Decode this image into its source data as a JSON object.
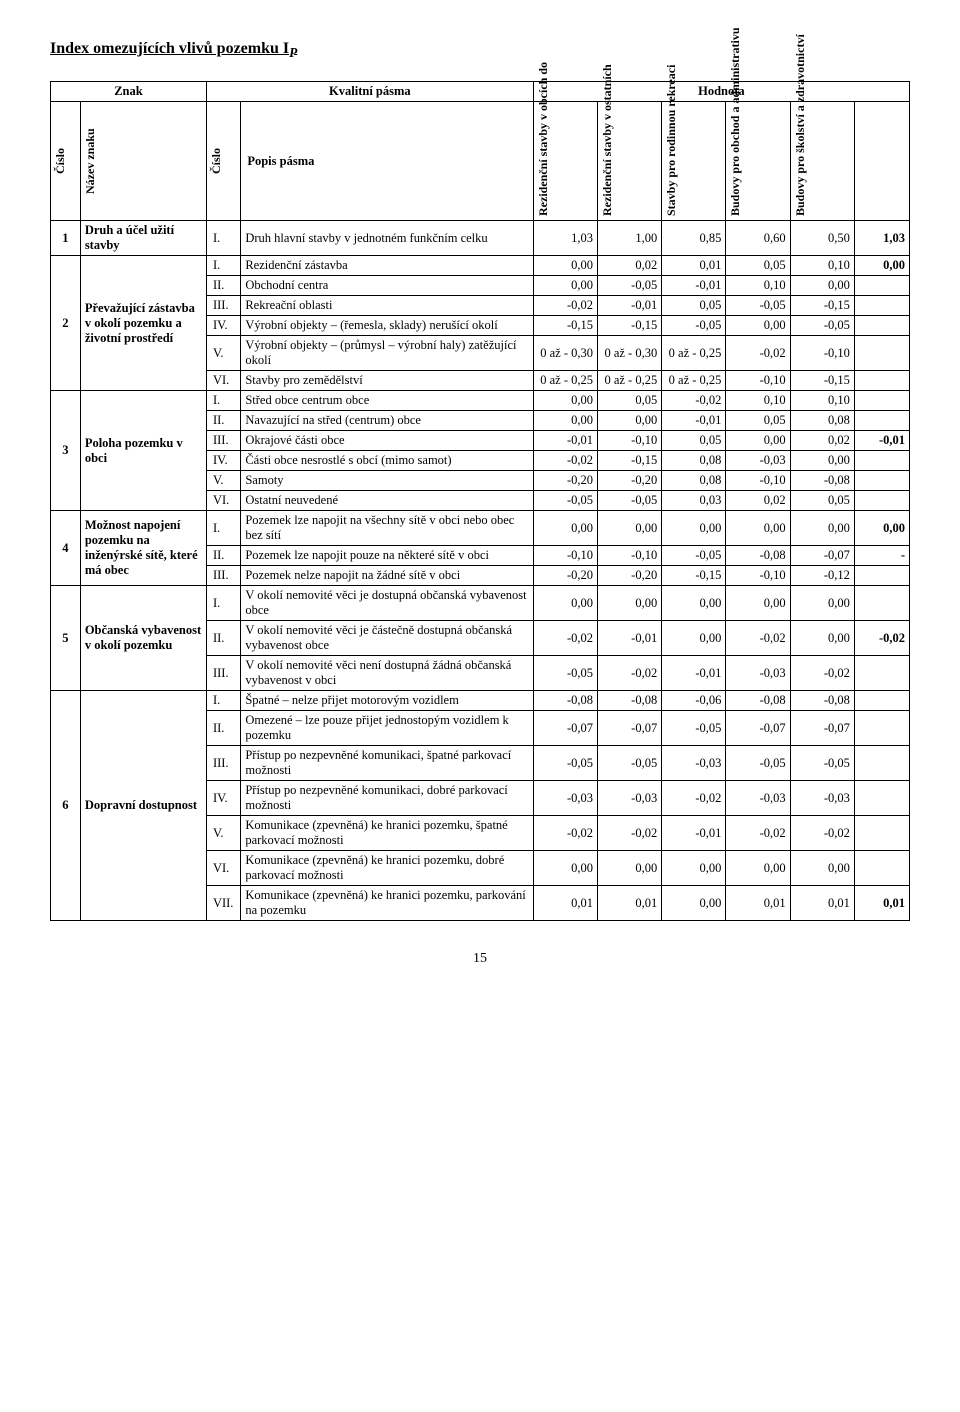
{
  "title_prefix": "Index omezujících vlivů pozemku  I",
  "title_sub": "P",
  "header": {
    "znak": "Znak",
    "kvalitni": "Kvalitní pásma",
    "hodnota": "Hodnota",
    "cislo": "Číslo",
    "nazev": "Název znaku",
    "popis": "Popis pásma",
    "h1": "Rezidenční stavby v obcích do",
    "h2": "Rezidenční stavby v ostatních",
    "h3": "Stavby pro rodinnou rekreaci",
    "h4": "Budovy pro obchod a administrativu",
    "h5": "Budovy pro školství a zdravotnictví"
  },
  "rows": [
    {
      "g": 1,
      "name": "Druh a účel užití stavby",
      "r": "I.",
      "d": "Druh hlavní stavby v jednotném funkčním celku",
      "v": [
        "1,03",
        "1,00",
        "0,85",
        "0,60",
        "0,50"
      ],
      "last": "1,03"
    },
    {
      "g": 2,
      "name": "Převažující zástavba v okolí pozemku a životní prostředí",
      "r": "I.",
      "d": "Rezidenční zástavba",
      "v": [
        "0,00",
        "0,02",
        "0,01",
        "0,05",
        "0,10"
      ],
      "last": "0,00"
    },
    {
      "g": 2,
      "r": "II.",
      "d": "Obchodní centra",
      "v": [
        "0,00",
        "-0,05",
        "-0,01",
        "0,10",
        "0,00"
      ],
      "last": ""
    },
    {
      "g": 2,
      "r": "III.",
      "d": "Rekreační oblasti",
      "v": [
        "-0,02",
        "-0,01",
        "0,05",
        "-0,05",
        "-0,15"
      ],
      "last": ""
    },
    {
      "g": 2,
      "r": "IV.",
      "d": "Výrobní objekty – (řemesla, sklady) nerušící okolí",
      "v": [
        "-0,15",
        "-0,15",
        "-0,05",
        "0,00",
        "-0,05"
      ],
      "last": ""
    },
    {
      "g": 2,
      "r": "V.",
      "d": "Výrobní objekty – (průmysl – výrobní haly) zatěžující okolí",
      "v": [
        "0 až - 0,30",
        "0 až - 0,30",
        "0 až - 0,25",
        "-0,02",
        "-0,10"
      ],
      "last": ""
    },
    {
      "g": 2,
      "r": "VI.",
      "d": "Stavby pro zemědělství",
      "v": [
        "0 až - 0,25",
        "0 až - 0,25",
        "0 až - 0,25",
        "-0,10",
        "-0,15"
      ],
      "last": ""
    },
    {
      "g": 3,
      "name": "Poloha pozemku v obci",
      "r": "I.",
      "d": "Střed obce centrum obce",
      "v": [
        "0,00",
        "0,05",
        "-0,02",
        "0,10",
        "0,10"
      ],
      "last": ""
    },
    {
      "g": 3,
      "r": "II.",
      "d": "Navazující na střed (centrum) obce",
      "v": [
        "0,00",
        "0,00",
        "-0,01",
        "0,05",
        "0,08"
      ],
      "last": ""
    },
    {
      "g": 3,
      "r": "III.",
      "d": "Okrajové části obce",
      "v": [
        "-0,01",
        "-0,10",
        "0,05",
        "0,00",
        "0,02"
      ],
      "last": "-0,01"
    },
    {
      "g": 3,
      "r": "IV.",
      "d": "Části obce nesrostlé s obcí (mimo samot)",
      "v": [
        "-0,02",
        "-0,15",
        "0,08",
        "-0,03",
        "0,00"
      ],
      "last": ""
    },
    {
      "g": 3,
      "r": "V.",
      "d": "Samoty",
      "v": [
        "-0,20",
        "-0,20",
        "0,08",
        "-0,10",
        "-0,08"
      ],
      "last": ""
    },
    {
      "g": 3,
      "r": "VI.",
      "d": "Ostatní neuvedené",
      "v": [
        "-0,05",
        "-0,05",
        "0,03",
        "0,02",
        "0,05"
      ],
      "last": ""
    },
    {
      "g": 4,
      "name": "Možnost napojení pozemku na inženýrské sítě, které má obec",
      "r": "I.",
      "d": "Pozemek lze napojit na všechny sítě v obci nebo obec bez sítí",
      "v": [
        "0,00",
        "0,00",
        "0,00",
        "0,00",
        "0,00"
      ],
      "last": "0,00"
    },
    {
      "g": 4,
      "r": "II.",
      "d": "Pozemek lze napojit pouze na některé sítě v obci",
      "v": [
        "-0,10",
        "-0,10",
        "-0,05",
        "-0,08",
        "-0,07"
      ],
      "last": "-"
    },
    {
      "g": 4,
      "r": "III.",
      "d": "Pozemek nelze napojit na žádné sítě v obci",
      "v": [
        "-0,20",
        "-0,20",
        "-0,15",
        "-0,10",
        "-0,12"
      ],
      "last": ""
    },
    {
      "g": 5,
      "name": "Občanská vybavenost v okolí pozemku",
      "r": "I.",
      "d": "V okolí nemovité věci je dostupná občanská vybavenost obce",
      "v": [
        "0,00",
        "0,00",
        "0,00",
        "0,00",
        "0,00"
      ],
      "last": ""
    },
    {
      "g": 5,
      "r": "II.",
      "d": "V okolí nemovité věci je částečně dostupná občanská vybavenost obce",
      "v": [
        "-0,02",
        "-0,01",
        "0,00",
        "-0,02",
        "0,00"
      ],
      "last": "-0,02"
    },
    {
      "g": 5,
      "r": "III.",
      "d": "V okolí nemovité věci není dostupná žádná občanská vybavenost v obci",
      "v": [
        "-0,05",
        "-0,02",
        "-0,01",
        "-0,03",
        "-0,02"
      ],
      "last": ""
    },
    {
      "g": 6,
      "name": "Dopravní dostupnost",
      "r": "I.",
      "d": "Špatné – nelze přijet motorovým vozidlem",
      "v": [
        "-0,08",
        "-0,08",
        "-0,06",
        "-0,08",
        "-0,08"
      ],
      "last": ""
    },
    {
      "g": 6,
      "r": "II.",
      "d": "Omezené – lze pouze přijet jednostopým vozidlem k pozemku",
      "v": [
        "-0,07",
        "-0,07",
        "-0,05",
        "-0,07",
        "-0,07"
      ],
      "last": ""
    },
    {
      "g": 6,
      "r": "III.",
      "d": "Přístup po nezpevněné komunikaci, špatné parkovací možnosti",
      "v": [
        "-0,05",
        "-0,05",
        "-0,03",
        "-0,05",
        "-0,05"
      ],
      "last": ""
    },
    {
      "g": 6,
      "r": "IV.",
      "d": "Přístup po nezpevněné komunikaci, dobré parkovací možnosti",
      "v": [
        "-0,03",
        "-0,03",
        "-0,02",
        "-0,03",
        "-0,03"
      ],
      "last": ""
    },
    {
      "g": 6,
      "r": "V.",
      "d": "Komunikace (zpevněná) ke hranici pozemku, špatné parkovací možnosti",
      "v": [
        "-0,02",
        "-0,02",
        "-0,01",
        "-0,02",
        "-0,02"
      ],
      "last": ""
    },
    {
      "g": 6,
      "r": "VI.",
      "d": "Komunikace (zpevněná) ke hranici pozemku, dobré parkovací možnosti",
      "v": [
        "0,00",
        "0,00",
        "0,00",
        "0,00",
        "0,00"
      ],
      "last": ""
    },
    {
      "g": 6,
      "r": "VII.",
      "d": "Komunikace (zpevněná) ke hranici pozemku, parkování na pozemku",
      "v": [
        "0,01",
        "0,01",
        "0,00",
        "0,01",
        "0,01"
      ],
      "last": "0,01"
    }
  ],
  "page_num": "15"
}
